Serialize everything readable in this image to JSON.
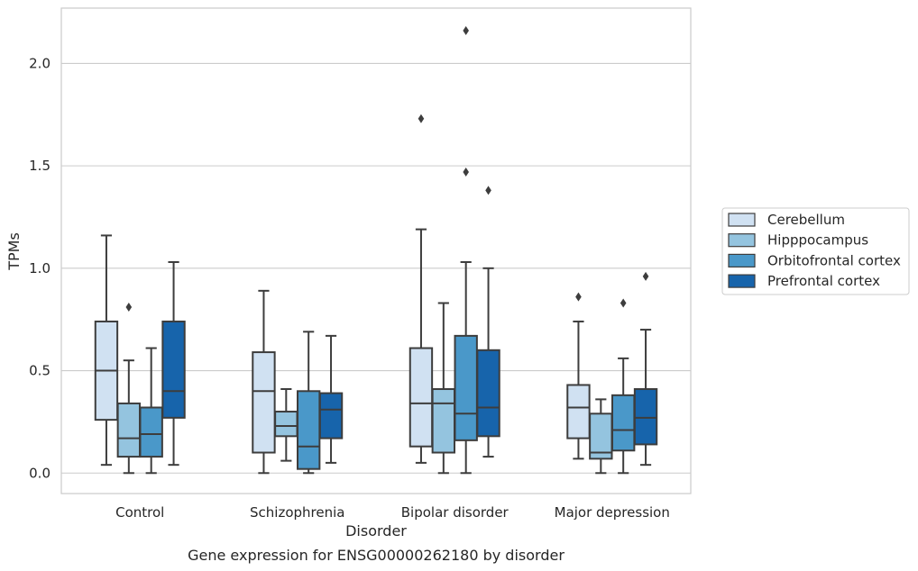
{
  "chart_data": {
    "type": "box",
    "caption": "Gene expression for ENSG00000262180 by disorder",
    "xlabel": "Disorder",
    "ylabel": "TPMs",
    "ylim": [
      -0.1,
      2.27
    ],
    "yticks": [
      0.0,
      0.5,
      1.0,
      1.5,
      2.0
    ],
    "ytick_labels": [
      "0.0",
      "0.5",
      "1.0",
      "1.5",
      "2.0"
    ],
    "grid": "horizontal",
    "legend_position": "right",
    "categories": [
      "Control",
      "Schizophrenia",
      "Bipolar disorder",
      "Major depression"
    ],
    "series": [
      {
        "name": "Cerebellum",
        "color": "#d0e1f2",
        "boxes": [
          {
            "whislo": 0.04,
            "q1": 0.26,
            "med": 0.5,
            "q3": 0.74,
            "whishi": 1.16,
            "fliers": []
          },
          {
            "whislo": 0.0,
            "q1": 0.1,
            "med": 0.4,
            "q3": 0.59,
            "whishi": 0.89,
            "fliers": []
          },
          {
            "whislo": 0.05,
            "q1": 0.13,
            "med": 0.34,
            "q3": 0.61,
            "whishi": 1.19,
            "fliers": [
              1.73
            ]
          },
          {
            "whislo": 0.07,
            "q1": 0.17,
            "med": 0.32,
            "q3": 0.43,
            "whishi": 0.74,
            "fliers": [
              0.86
            ]
          }
        ]
      },
      {
        "name": "Hipppocampus",
        "color": "#94c4df",
        "boxes": [
          {
            "whislo": 0.0,
            "q1": 0.08,
            "med": 0.17,
            "q3": 0.34,
            "whishi": 0.55,
            "fliers": [
              0.81
            ]
          },
          {
            "whislo": 0.06,
            "q1": 0.18,
            "med": 0.23,
            "q3": 0.3,
            "whishi": 0.41,
            "fliers": []
          },
          {
            "whislo": 0.0,
            "q1": 0.1,
            "med": 0.34,
            "q3": 0.41,
            "whishi": 0.83,
            "fliers": []
          },
          {
            "whislo": 0.0,
            "q1": 0.07,
            "med": 0.1,
            "q3": 0.29,
            "whishi": 0.36,
            "fliers": []
          }
        ]
      },
      {
        "name": "Orbitofrontal cortex",
        "color": "#4a98c9",
        "boxes": [
          {
            "whislo": 0.0,
            "q1": 0.08,
            "med": 0.19,
            "q3": 0.32,
            "whishi": 0.61,
            "fliers": []
          },
          {
            "whislo": 0.0,
            "q1": 0.02,
            "med": 0.13,
            "q3": 0.4,
            "whishi": 0.69,
            "fliers": []
          },
          {
            "whislo": 0.0,
            "q1": 0.16,
            "med": 0.29,
            "q3": 0.67,
            "whishi": 1.03,
            "fliers": [
              1.47,
              2.16
            ]
          },
          {
            "whislo": 0.0,
            "q1": 0.11,
            "med": 0.21,
            "q3": 0.38,
            "whishi": 0.56,
            "fliers": [
              0.83
            ]
          }
        ]
      },
      {
        "name": "Prefrontal cortex",
        "color": "#1764ab",
        "boxes": [
          {
            "whislo": 0.04,
            "q1": 0.27,
            "med": 0.4,
            "q3": 0.74,
            "whishi": 1.03,
            "fliers": []
          },
          {
            "whislo": 0.05,
            "q1": 0.17,
            "med": 0.31,
            "q3": 0.39,
            "whishi": 0.67,
            "fliers": []
          },
          {
            "whislo": 0.08,
            "q1": 0.18,
            "med": 0.32,
            "q3": 0.6,
            "whishi": 1.0,
            "fliers": [
              1.38
            ]
          },
          {
            "whislo": 0.04,
            "q1": 0.14,
            "med": 0.27,
            "q3": 0.41,
            "whishi": 0.7,
            "fliers": [
              0.96
            ]
          }
        ]
      }
    ]
  }
}
